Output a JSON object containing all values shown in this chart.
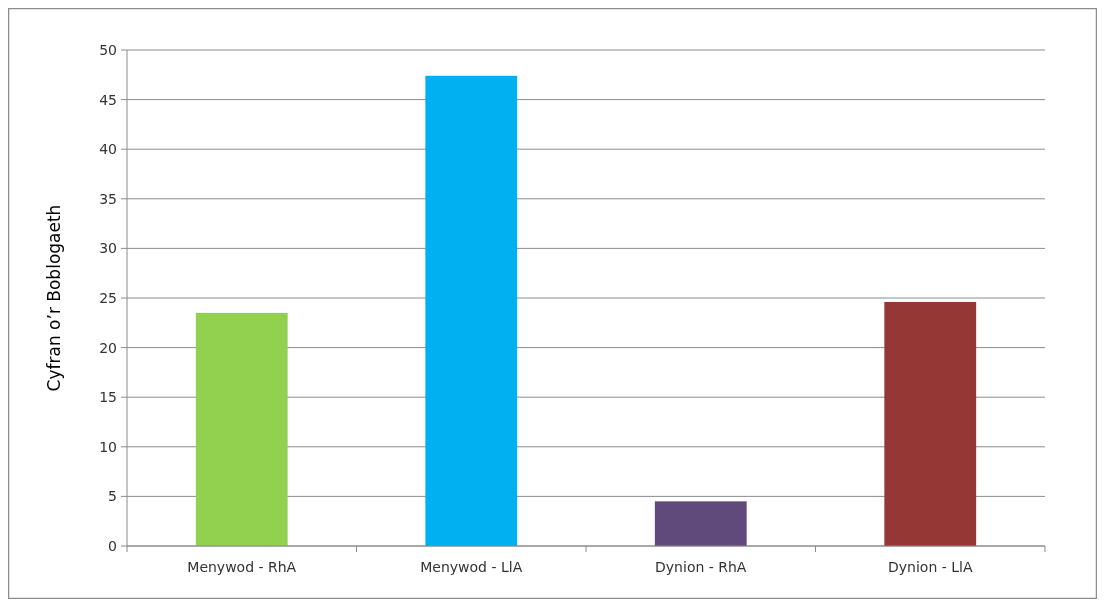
{
  "chart_data": {
    "type": "bar",
    "ylabel": "Cyfran o’r Boblogaeth",
    "categories": [
      "Menywod - RhA",
      "Menywod - LlA",
      "Dynion - RhA",
      "Dynion - LlA"
    ],
    "values": [
      23.5,
      47.4,
      4.5,
      24.6
    ],
    "colors": [
      "#92d050",
      "#00b0f0",
      "#604a7b",
      "#953735"
    ],
    "ylim": [
      0,
      50
    ],
    "yticks": [
      0,
      5,
      10,
      15,
      20,
      25,
      30,
      35,
      40,
      45,
      50
    ],
    "grid": "y"
  }
}
